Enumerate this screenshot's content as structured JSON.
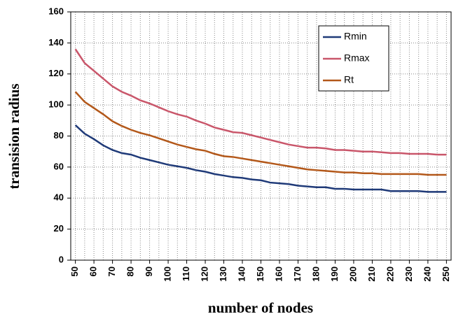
{
  "chart_data": {
    "type": "line",
    "x_label": "number of nodes",
    "y_label": "transision radius",
    "x": [
      50,
      55,
      60,
      65,
      70,
      75,
      80,
      85,
      90,
      95,
      100,
      105,
      110,
      115,
      120,
      125,
      130,
      135,
      140,
      145,
      150,
      155,
      160,
      165,
      170,
      175,
      180,
      185,
      190,
      195,
      200,
      205,
      210,
      215,
      220,
      225,
      230,
      235,
      240,
      245,
      250
    ],
    "series": [
      {
        "name": "Rmin",
        "color": "#1f3a78",
        "values": [
          87,
          81.5,
          78,
          74,
          71,
          69,
          68,
          66,
          64.5,
          63,
          61.5,
          60.5,
          59.5,
          58,
          57,
          55.5,
          54.5,
          53.5,
          53,
          52,
          51.5,
          50,
          49.5,
          49,
          48,
          47.5,
          47,
          47,
          46,
          46,
          45.5,
          45.5,
          45.5,
          45.5,
          44.5,
          44.5,
          44.5,
          44.5,
          44,
          44,
          44
        ]
      },
      {
        "name": "Rmax",
        "color": "#c9566a",
        "values": [
          136,
          127,
          122,
          117,
          112,
          108.5,
          106,
          103,
          101,
          98.5,
          96,
          94,
          92.5,
          90,
          88,
          85.5,
          84,
          82.5,
          82,
          80.5,
          79,
          77.5,
          76,
          74.5,
          73.5,
          72.5,
          72.5,
          72,
          71,
          71,
          70.5,
          70,
          70,
          69.5,
          69,
          69,
          68.5,
          68.5,
          68.5,
          68,
          68
        ]
      },
      {
        "name": "Rt",
        "color": "#b3581a",
        "values": [
          108.5,
          102,
          98,
          94,
          89.5,
          86.5,
          84,
          82,
          80.5,
          78.5,
          76.5,
          74.5,
          73,
          71.5,
          70.5,
          68.5,
          67,
          66.5,
          65.5,
          64.5,
          63.5,
          62.5,
          61.5,
          60.5,
          59.5,
          58.5,
          58,
          57.5,
          57,
          56.5,
          56.5,
          56,
          56,
          55.5,
          55.5,
          55.5,
          55.5,
          55.5,
          55,
          55,
          55
        ]
      }
    ],
    "xlim": [
      47.5,
      252.5
    ],
    "xticks": [
      50,
      60,
      70,
      80,
      90,
      100,
      110,
      120,
      130,
      140,
      150,
      160,
      170,
      180,
      190,
      200,
      210,
      220,
      230,
      240,
      250
    ],
    "ylim": [
      0,
      160
    ],
    "yticks": [
      0,
      20,
      40,
      60,
      80,
      100,
      120,
      140,
      160
    ],
    "grid": true,
    "legend": "upper right"
  }
}
